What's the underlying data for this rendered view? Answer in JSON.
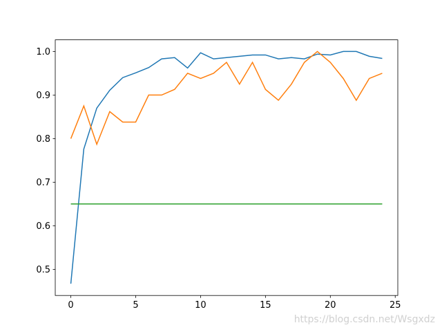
{
  "chart_data": {
    "type": "line",
    "x": [
      0,
      1,
      2,
      3,
      4,
      5,
      6,
      7,
      8,
      9,
      10,
      11,
      12,
      13,
      14,
      15,
      16,
      17,
      18,
      19,
      20,
      21,
      22,
      23,
      24
    ],
    "series": [
      {
        "color": "#1f77b4",
        "values": [
          0.467,
          0.776,
          0.87,
          0.911,
          0.94,
          0.951,
          0.963,
          0.983,
          0.986,
          0.962,
          0.997,
          0.983,
          0.986,
          0.989,
          0.992,
          0.992,
          0.983,
          0.986,
          0.983,
          0.994,
          0.992,
          1.0,
          1.0,
          0.989,
          0.984
        ]
      },
      {
        "color": "#ff7f0e",
        "values": [
          0.8,
          0.875,
          0.787,
          0.862,
          0.838,
          0.838,
          0.9,
          0.9,
          0.913,
          0.95,
          0.938,
          0.95,
          0.975,
          0.925,
          0.975,
          0.913,
          0.888,
          0.925,
          0.975,
          1.0,
          0.975,
          0.938,
          0.888,
          0.938,
          0.95
        ]
      },
      {
        "color": "#2ca02c",
        "values": [
          0.65,
          0.65,
          0.65,
          0.65,
          0.65,
          0.65,
          0.65,
          0.65,
          0.65,
          0.65,
          0.65,
          0.65,
          0.65,
          0.65,
          0.65,
          0.65,
          0.65,
          0.65,
          0.65,
          0.65,
          0.65,
          0.65,
          0.65,
          0.65,
          0.65
        ]
      }
    ],
    "xlim": [
      -1.2,
      25.2
    ],
    "xticks": [
      0,
      5,
      10,
      15,
      20,
      25
    ],
    "ylim": [
      0.44,
      1.0267
    ],
    "yticks": [
      0.5,
      0.6,
      0.7,
      0.8,
      0.9,
      {
        "value": 1,
        "label": "1.0"
      }
    ],
    "grid": false,
    "watermark": "https://blog.csdn.net/Wsgxdz"
  }
}
